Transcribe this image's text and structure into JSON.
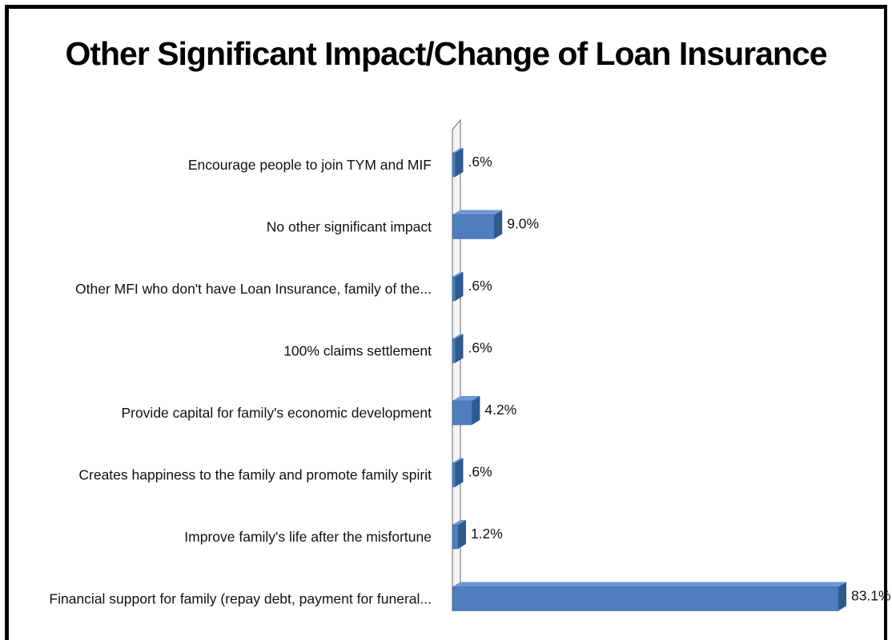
{
  "chart_data": {
    "type": "bar",
    "orientation": "horizontal",
    "title": "Other Significant Impact/Change of Loan Insurance",
    "categories": [
      "Encourage people to join TYM and MIF",
      "No other significant impact",
      "Other MFI who don't have Loan Insurance, family of the...",
      "100% claims settlement",
      "Provide capital for family's economic development",
      "Creates happiness to the family and promote family spirit",
      "Improve family's life after the misfortune",
      "Financial support for family (repay debt, payment for funeral..."
    ],
    "values": [
      0.6,
      9.0,
      0.6,
      0.6,
      4.2,
      0.6,
      1.2,
      83.1
    ],
    "value_labels": [
      ".6%",
      "9.0%",
      ".6%",
      ".6%",
      "4.2%",
      ".6%",
      "1.2%",
      "83.1%"
    ],
    "xlim": [
      0,
      100
    ],
    "grid": false,
    "legend": "none",
    "bar_color": "#4F7DBE",
    "bar_side_color": "#2E5A8E",
    "bar_top_color": "#6D98D4"
  }
}
